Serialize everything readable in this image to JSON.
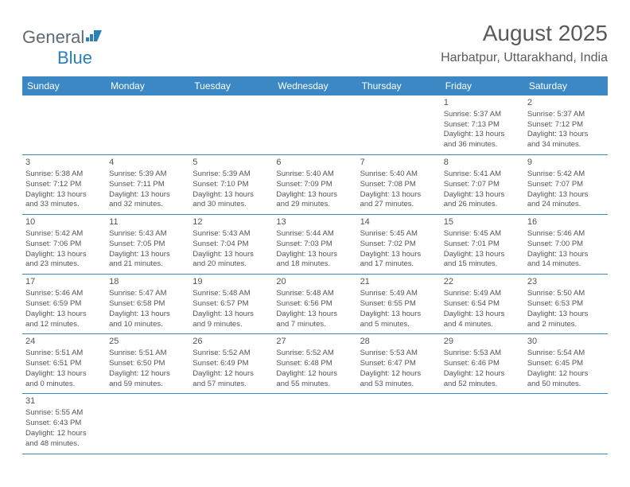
{
  "logo": {
    "text1": "General",
    "text2": "Blue"
  },
  "title": "August 2025",
  "location": "Harbatpur, Uttarakhand, India",
  "colors": {
    "header_bg": "#3b88c4",
    "header_text": "#ffffff",
    "row_border": "#3b88c4",
    "text": "#555555",
    "logo_gray": "#606a73",
    "logo_blue": "#2c7fb8",
    "page_bg": "#ffffff"
  },
  "weekdays": [
    "Sunday",
    "Monday",
    "Tuesday",
    "Wednesday",
    "Thursday",
    "Friday",
    "Saturday"
  ],
  "weeks": [
    [
      null,
      null,
      null,
      null,
      null,
      {
        "d": "1",
        "sr": "Sunrise: 5:37 AM",
        "ss": "Sunset: 7:13 PM",
        "dl1": "Daylight: 13 hours",
        "dl2": "and 36 minutes."
      },
      {
        "d": "2",
        "sr": "Sunrise: 5:37 AM",
        "ss": "Sunset: 7:12 PM",
        "dl1": "Daylight: 13 hours",
        "dl2": "and 34 minutes."
      }
    ],
    [
      {
        "d": "3",
        "sr": "Sunrise: 5:38 AM",
        "ss": "Sunset: 7:12 PM",
        "dl1": "Daylight: 13 hours",
        "dl2": "and 33 minutes."
      },
      {
        "d": "4",
        "sr": "Sunrise: 5:39 AM",
        "ss": "Sunset: 7:11 PM",
        "dl1": "Daylight: 13 hours",
        "dl2": "and 32 minutes."
      },
      {
        "d": "5",
        "sr": "Sunrise: 5:39 AM",
        "ss": "Sunset: 7:10 PM",
        "dl1": "Daylight: 13 hours",
        "dl2": "and 30 minutes."
      },
      {
        "d": "6",
        "sr": "Sunrise: 5:40 AM",
        "ss": "Sunset: 7:09 PM",
        "dl1": "Daylight: 13 hours",
        "dl2": "and 29 minutes."
      },
      {
        "d": "7",
        "sr": "Sunrise: 5:40 AM",
        "ss": "Sunset: 7:08 PM",
        "dl1": "Daylight: 13 hours",
        "dl2": "and 27 minutes."
      },
      {
        "d": "8",
        "sr": "Sunrise: 5:41 AM",
        "ss": "Sunset: 7:07 PM",
        "dl1": "Daylight: 13 hours",
        "dl2": "and 26 minutes."
      },
      {
        "d": "9",
        "sr": "Sunrise: 5:42 AM",
        "ss": "Sunset: 7:07 PM",
        "dl1": "Daylight: 13 hours",
        "dl2": "and 24 minutes."
      }
    ],
    [
      {
        "d": "10",
        "sr": "Sunrise: 5:42 AM",
        "ss": "Sunset: 7:06 PM",
        "dl1": "Daylight: 13 hours",
        "dl2": "and 23 minutes."
      },
      {
        "d": "11",
        "sr": "Sunrise: 5:43 AM",
        "ss": "Sunset: 7:05 PM",
        "dl1": "Daylight: 13 hours",
        "dl2": "and 21 minutes."
      },
      {
        "d": "12",
        "sr": "Sunrise: 5:43 AM",
        "ss": "Sunset: 7:04 PM",
        "dl1": "Daylight: 13 hours",
        "dl2": "and 20 minutes."
      },
      {
        "d": "13",
        "sr": "Sunrise: 5:44 AM",
        "ss": "Sunset: 7:03 PM",
        "dl1": "Daylight: 13 hours",
        "dl2": "and 18 minutes."
      },
      {
        "d": "14",
        "sr": "Sunrise: 5:45 AM",
        "ss": "Sunset: 7:02 PM",
        "dl1": "Daylight: 13 hours",
        "dl2": "and 17 minutes."
      },
      {
        "d": "15",
        "sr": "Sunrise: 5:45 AM",
        "ss": "Sunset: 7:01 PM",
        "dl1": "Daylight: 13 hours",
        "dl2": "and 15 minutes."
      },
      {
        "d": "16",
        "sr": "Sunrise: 5:46 AM",
        "ss": "Sunset: 7:00 PM",
        "dl1": "Daylight: 13 hours",
        "dl2": "and 14 minutes."
      }
    ],
    [
      {
        "d": "17",
        "sr": "Sunrise: 5:46 AM",
        "ss": "Sunset: 6:59 PM",
        "dl1": "Daylight: 13 hours",
        "dl2": "and 12 minutes."
      },
      {
        "d": "18",
        "sr": "Sunrise: 5:47 AM",
        "ss": "Sunset: 6:58 PM",
        "dl1": "Daylight: 13 hours",
        "dl2": "and 10 minutes."
      },
      {
        "d": "19",
        "sr": "Sunrise: 5:48 AM",
        "ss": "Sunset: 6:57 PM",
        "dl1": "Daylight: 13 hours",
        "dl2": "and 9 minutes."
      },
      {
        "d": "20",
        "sr": "Sunrise: 5:48 AM",
        "ss": "Sunset: 6:56 PM",
        "dl1": "Daylight: 13 hours",
        "dl2": "and 7 minutes."
      },
      {
        "d": "21",
        "sr": "Sunrise: 5:49 AM",
        "ss": "Sunset: 6:55 PM",
        "dl1": "Daylight: 13 hours",
        "dl2": "and 5 minutes."
      },
      {
        "d": "22",
        "sr": "Sunrise: 5:49 AM",
        "ss": "Sunset: 6:54 PM",
        "dl1": "Daylight: 13 hours",
        "dl2": "and 4 minutes."
      },
      {
        "d": "23",
        "sr": "Sunrise: 5:50 AM",
        "ss": "Sunset: 6:53 PM",
        "dl1": "Daylight: 13 hours",
        "dl2": "and 2 minutes."
      }
    ],
    [
      {
        "d": "24",
        "sr": "Sunrise: 5:51 AM",
        "ss": "Sunset: 6:51 PM",
        "dl1": "Daylight: 13 hours",
        "dl2": "and 0 minutes."
      },
      {
        "d": "25",
        "sr": "Sunrise: 5:51 AM",
        "ss": "Sunset: 6:50 PM",
        "dl1": "Daylight: 12 hours",
        "dl2": "and 59 minutes."
      },
      {
        "d": "26",
        "sr": "Sunrise: 5:52 AM",
        "ss": "Sunset: 6:49 PM",
        "dl1": "Daylight: 12 hours",
        "dl2": "and 57 minutes."
      },
      {
        "d": "27",
        "sr": "Sunrise: 5:52 AM",
        "ss": "Sunset: 6:48 PM",
        "dl1": "Daylight: 12 hours",
        "dl2": "and 55 minutes."
      },
      {
        "d": "28",
        "sr": "Sunrise: 5:53 AM",
        "ss": "Sunset: 6:47 PM",
        "dl1": "Daylight: 12 hours",
        "dl2": "and 53 minutes."
      },
      {
        "d": "29",
        "sr": "Sunrise: 5:53 AM",
        "ss": "Sunset: 6:46 PM",
        "dl1": "Daylight: 12 hours",
        "dl2": "and 52 minutes."
      },
      {
        "d": "30",
        "sr": "Sunrise: 5:54 AM",
        "ss": "Sunset: 6:45 PM",
        "dl1": "Daylight: 12 hours",
        "dl2": "and 50 minutes."
      }
    ],
    [
      {
        "d": "31",
        "sr": "Sunrise: 5:55 AM",
        "ss": "Sunset: 6:43 PM",
        "dl1": "Daylight: 12 hours",
        "dl2": "and 48 minutes."
      },
      null,
      null,
      null,
      null,
      null,
      null
    ]
  ]
}
